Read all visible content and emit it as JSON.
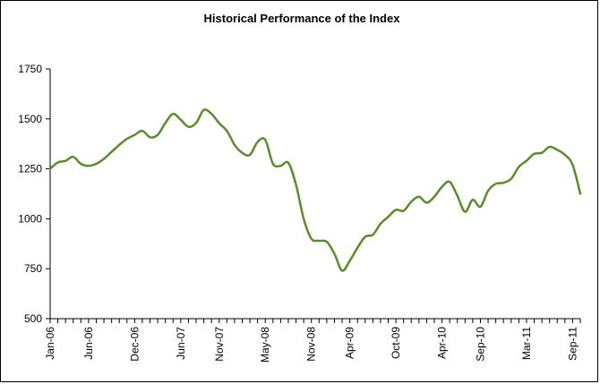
{
  "chart_data": {
    "type": "line",
    "title": "Historical Performance of the Index",
    "xlabel": "",
    "ylabel": "",
    "ylim": [
      500,
      1750
    ],
    "yticks": [
      500,
      750,
      1000,
      1250,
      1500,
      1750
    ],
    "xtick_labels": [
      "Jan-06",
      "Jun-06",
      "Dec-06",
      "Jun-07",
      "Nov-07",
      "May-08",
      "Nov-08",
      "Apr-09",
      "Oct-09",
      "Apr-10",
      "Sep-10",
      "Mar-11",
      "Sep-11"
    ],
    "grid": false,
    "legend": "none",
    "line_color": "#5b8c2a",
    "series": [
      {
        "x": [
          "2006-01",
          "2006-02",
          "2006-03",
          "2006-04",
          "2006-05",
          "2006-06",
          "2006-07",
          "2006-08",
          "2006-09",
          "2006-10",
          "2006-11",
          "2006-12",
          "2007-01",
          "2007-02",
          "2007-03",
          "2007-04",
          "2007-05",
          "2007-06",
          "2007-07",
          "2007-08",
          "2007-09",
          "2007-10",
          "2007-11",
          "2007-12",
          "2008-01",
          "2008-02",
          "2008-03",
          "2008-04",
          "2008-05",
          "2008-06",
          "2008-07",
          "2008-08",
          "2008-09",
          "2008-10",
          "2008-11",
          "2008-12",
          "2009-01",
          "2009-02",
          "2009-03",
          "2009-04",
          "2009-05",
          "2009-06",
          "2009-07",
          "2009-08",
          "2009-09",
          "2009-10",
          "2009-11",
          "2009-12",
          "2010-01",
          "2010-02",
          "2010-03",
          "2010-04",
          "2010-05",
          "2010-06",
          "2010-07",
          "2010-08",
          "2010-09",
          "2010-10",
          "2010-11",
          "2010-12",
          "2011-01",
          "2011-02",
          "2011-03",
          "2011-04",
          "2011-05",
          "2011-06",
          "2011-07",
          "2011-08",
          "2011-09",
          "2011-10"
        ],
        "values": [
          1250,
          1282,
          1290,
          1310,
          1275,
          1265,
          1275,
          1300,
          1335,
          1370,
          1400,
          1420,
          1440,
          1408,
          1420,
          1480,
          1525,
          1495,
          1460,
          1480,
          1545,
          1525,
          1478,
          1440,
          1370,
          1330,
          1320,
          1385,
          1395,
          1275,
          1265,
          1280,
          1170,
          1000,
          900,
          890,
          885,
          825,
          740,
          790,
          855,
          910,
          920,
          975,
          1010,
          1045,
          1040,
          1085,
          1110,
          1080,
          1110,
          1160,
          1185,
          1115,
          1035,
          1095,
          1060,
          1140,
          1175,
          1180,
          1200,
          1260,
          1290,
          1325,
          1330,
          1360,
          1345,
          1320,
          1270,
          1125
        ]
      }
    ]
  }
}
